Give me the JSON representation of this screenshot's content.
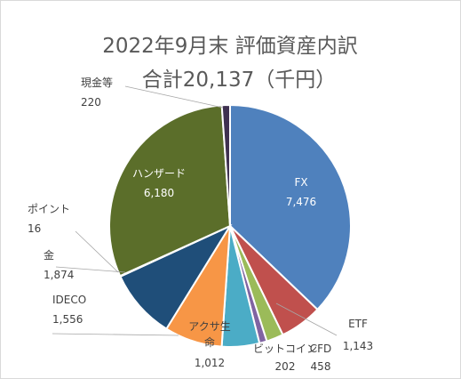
{
  "chart_data": {
    "type": "pie",
    "title": "2022年9月末 評価資産内訳",
    "subtitle": "合計20,137（千円）",
    "slices": [
      {
        "label": "FX",
        "value": 7476,
        "value_text": "7,476",
        "color": "#4f81bd"
      },
      {
        "label": "ETF",
        "value": 1143,
        "value_text": "1,143",
        "color": "#c0504d"
      },
      {
        "label": "CFD",
        "value": 458,
        "value_text": "458",
        "color": "#9bbb59"
      },
      {
        "label": "ビットコイン",
        "value": 202,
        "value_text": "202",
        "color": "#8064a2"
      },
      {
        "label": "アクサ生命",
        "value": 1012,
        "value_text": "1,012",
        "color": "#4bacc6"
      },
      {
        "label": "IDECO",
        "value": 1556,
        "value_text": "1,556",
        "color": "#f79646"
      },
      {
        "label": "金",
        "value": 1874,
        "value_text": "1,874",
        "color": "#1f4e79"
      },
      {
        "label": "ポイント",
        "value": 16,
        "value_text": "16",
        "color": "#7f1f1f"
      },
      {
        "label": "ハンザード",
        "value": 6180,
        "value_text": "6,180",
        "color": "#5b6e2a"
      },
      {
        "label": "現金等",
        "value": 220,
        "value_text": "220",
        "color": "#3f3151"
      }
    ]
  }
}
